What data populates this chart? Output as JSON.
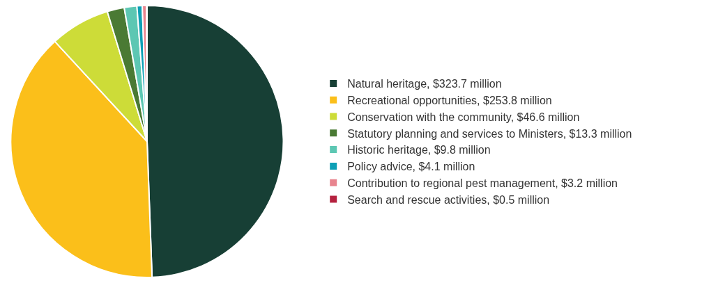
{
  "chart_data": {
    "type": "pie",
    "categories": [
      "Natural heritage, $323.7 million",
      "Recreational opportunities, $253.8 million",
      "Conservation with the community, $46.6 million",
      "Statutory planning and services to Ministers, $13.3 million",
      "Historic heritage, $9.8 million",
      "Policy advice, $4.1 million",
      "Contribution to regional pest management, $3.2 million",
      "Search and rescue activities, $0.5 million"
    ],
    "values": [
      323.7,
      253.8,
      46.6,
      13.3,
      9.8,
      4.1,
      3.2,
      0.5
    ],
    "colors": [
      "#173f35",
      "#fbbf1a",
      "#cddc38",
      "#4a7a34",
      "#5cc7b3",
      "#0d9fb5",
      "#e8848e",
      "#b5213f"
    ],
    "legend": "right"
  }
}
